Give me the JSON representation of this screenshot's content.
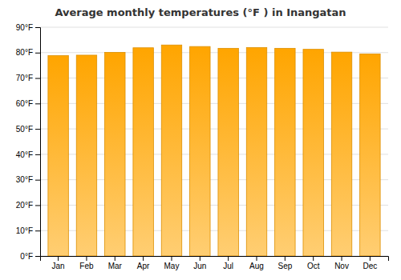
{
  "chart_data": {
    "type": "bar",
    "title": "Average monthly temperatures (°F ) in Inangatan",
    "categories": [
      "Jan",
      "Feb",
      "Mar",
      "Apr",
      "May",
      "Jun",
      "Jul",
      "Aug",
      "Sep",
      "Oct",
      "Nov",
      "Dec"
    ],
    "values": [
      78.8,
      79.0,
      80.1,
      81.9,
      83.0,
      82.4,
      81.7,
      82.0,
      81.7,
      81.3,
      80.2,
      79.5
    ],
    "color": "#FFA500",
    "ylim": [
      0,
      90
    ],
    "yticks": [
      {
        "value": 0,
        "label": "0°F"
      },
      {
        "value": 10,
        "label": "10°F"
      },
      {
        "value": 20,
        "label": "20°F"
      },
      {
        "value": 30,
        "label": "30°F"
      },
      {
        "value": 40,
        "label": "40°F"
      },
      {
        "value": 50,
        "label": "50°F"
      },
      {
        "value": 60,
        "label": "60°F"
      },
      {
        "value": 70,
        "label": "70°F"
      },
      {
        "value": 80,
        "label": "80°F"
      },
      {
        "value": 90,
        "label": "90°F"
      }
    ],
    "grid": true
  }
}
